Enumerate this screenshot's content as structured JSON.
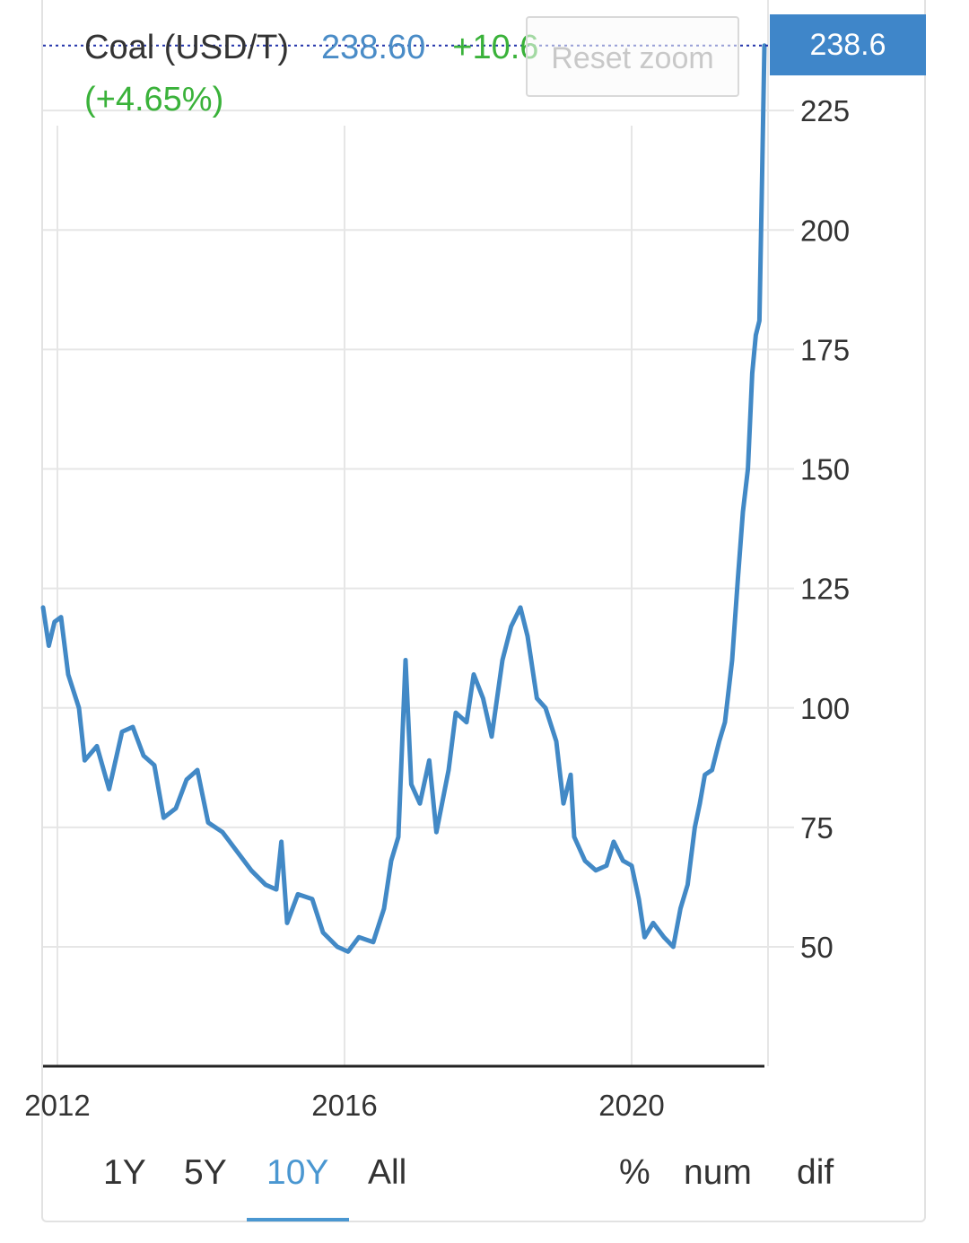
{
  "legend": {
    "name": "Coal (USD/T)",
    "price": "238.60",
    "change": "+10.6",
    "change_pct": "(+4.65%)"
  },
  "reset_zoom_label": "Reset zoom",
  "price_badge": "238.6",
  "range_tabs": [
    {
      "label": "1Y",
      "active": false
    },
    {
      "label": "5Y",
      "active": false
    },
    {
      "label": "10Y",
      "active": true
    },
    {
      "label": "All",
      "active": false
    }
  ],
  "mode_tabs": [
    {
      "label": "%"
    },
    {
      "label": "num"
    },
    {
      "label": "dif"
    }
  ],
  "colors": {
    "line": "#4289c6",
    "accent": "#4a97d1",
    "positive": "#3ab23a",
    "badge": "#3f86c9"
  },
  "chart_data": {
    "type": "line",
    "title": "",
    "xlabel": "",
    "ylabel": "",
    "x_tick_labels": [
      "2012",
      "2016",
      "2020"
    ],
    "y_tick_labels": [
      "50",
      "75",
      "100",
      "125",
      "150",
      "175",
      "200",
      "225"
    ],
    "ylim": [
      25,
      245
    ],
    "xlim": [
      2011.8,
      2021.85
    ],
    "last_value": 238.6,
    "grid": true,
    "series": [
      {
        "values": [
          [
            2011.8,
            121
          ],
          [
            2011.88,
            113
          ],
          [
            2011.96,
            118
          ],
          [
            2012.05,
            119
          ],
          [
            2012.15,
            107
          ],
          [
            2012.3,
            100
          ],
          [
            2012.38,
            89
          ],
          [
            2012.55,
            92
          ],
          [
            2012.72,
            83
          ],
          [
            2012.9,
            95
          ],
          [
            2013.05,
            96
          ],
          [
            2013.2,
            90
          ],
          [
            2013.35,
            88
          ],
          [
            2013.48,
            77
          ],
          [
            2013.65,
            79
          ],
          [
            2013.8,
            85
          ],
          [
            2013.95,
            87
          ],
          [
            2014.1,
            76
          ],
          [
            2014.3,
            74
          ],
          [
            2014.5,
            70
          ],
          [
            2014.7,
            66
          ],
          [
            2014.9,
            63
          ],
          [
            2015.05,
            62
          ],
          [
            2015.12,
            72
          ],
          [
            2015.2,
            55
          ],
          [
            2015.35,
            61
          ],
          [
            2015.55,
            60
          ],
          [
            2015.7,
            53
          ],
          [
            2015.9,
            50
          ],
          [
            2016.05,
            49
          ],
          [
            2016.2,
            52
          ],
          [
            2016.4,
            51
          ],
          [
            2016.55,
            58
          ],
          [
            2016.65,
            68
          ],
          [
            2016.75,
            73
          ],
          [
            2016.85,
            110
          ],
          [
            2016.93,
            84
          ],
          [
            2017.05,
            80
          ],
          [
            2017.18,
            89
          ],
          [
            2017.28,
            74
          ],
          [
            2017.45,
            87
          ],
          [
            2017.55,
            99
          ],
          [
            2017.7,
            97
          ],
          [
            2017.8,
            107
          ],
          [
            2017.93,
            102
          ],
          [
            2018.05,
            94
          ],
          [
            2018.2,
            110
          ],
          [
            2018.32,
            117
          ],
          [
            2018.45,
            121
          ],
          [
            2018.55,
            115
          ],
          [
            2018.68,
            102
          ],
          [
            2018.8,
            100
          ],
          [
            2018.95,
            93
          ],
          [
            2019.05,
            80
          ],
          [
            2019.15,
            86
          ],
          [
            2019.2,
            73
          ],
          [
            2019.35,
            68
          ],
          [
            2019.5,
            66
          ],
          [
            2019.65,
            67
          ],
          [
            2019.75,
            72
          ],
          [
            2019.88,
            68
          ],
          [
            2020.0,
            67
          ],
          [
            2020.1,
            60
          ],
          [
            2020.18,
            52
          ],
          [
            2020.3,
            55
          ],
          [
            2020.45,
            52
          ],
          [
            2020.58,
            50
          ],
          [
            2020.68,
            58
          ],
          [
            2020.78,
            63
          ],
          [
            2020.88,
            75
          ],
          [
            2020.95,
            80
          ],
          [
            2021.02,
            86
          ],
          [
            2021.12,
            87
          ],
          [
            2021.22,
            93
          ],
          [
            2021.3,
            97
          ],
          [
            2021.4,
            110
          ],
          [
            2021.48,
            127
          ],
          [
            2021.55,
            141
          ],
          [
            2021.62,
            150
          ],
          [
            2021.68,
            170
          ],
          [
            2021.73,
            178
          ],
          [
            2021.78,
            181
          ],
          [
            2021.81,
            205
          ],
          [
            2021.85,
            238.6
          ]
        ]
      }
    ]
  }
}
